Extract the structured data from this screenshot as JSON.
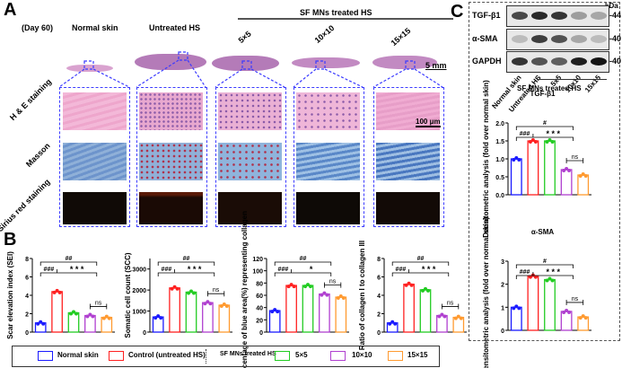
{
  "panels": {
    "a": "A",
    "b": "B",
    "c": "C"
  },
  "panelA": {
    "day": "(Day 60)",
    "groups": [
      "Normal skin",
      "Untreated HS"
    ],
    "treated_header": "SF MNs treated HS",
    "treated_groups": [
      "5×5",
      "10×10",
      "15×15"
    ],
    "scale_macro": "5 mm",
    "scale_micro": "100 μm",
    "row_labels": [
      "H & E staining",
      "Masson",
      "Sirius red staining"
    ]
  },
  "legend": {
    "normal": "Normal skin",
    "control": "Control (untreated HS)",
    "treated": "SF MNs treated HS",
    "g5": "5×5",
    "g10": "10×10",
    "g15": "15×15"
  },
  "colors": {
    "normal": "#1a1aff",
    "control": "#ff2020",
    "g5": "#22cc22",
    "g10": "#b040d0",
    "g15": "#ff9a30"
  },
  "panelC": {
    "kda": "kDa",
    "blots": [
      {
        "name": "TGF-β1",
        "kda": "44",
        "intensity": [
          0.75,
          0.9,
          0.85,
          0.35,
          0.3
        ]
      },
      {
        "name": "α-SMA",
        "kda": "40",
        "intensity": [
          0.2,
          0.8,
          0.7,
          0.3,
          0.2
        ]
      },
      {
        "name": "GAPDH",
        "kda": "40",
        "intensity": [
          0.85,
          0.7,
          0.65,
          0.95,
          1.0
        ]
      }
    ],
    "lanes": [
      "Normal skin",
      "Untreated HS",
      "5x5",
      "10x10",
      "15x15"
    ],
    "treated_label": "SF MNs treated HS"
  },
  "chart_data": [
    {
      "type": "bar",
      "title": "",
      "ylabel": "Scar elevation index (SEI)",
      "categories": [
        "Normal skin",
        "Control (untreated HS)",
        "5×5",
        "10×10",
        "15×15"
      ],
      "values": [
        1.0,
        4.4,
        2.1,
        1.8,
        1.6
      ],
      "ylim": [
        0,
        8
      ],
      "yticks": [
        0,
        2,
        4,
        6,
        8
      ],
      "annotations": [
        "###",
        "##",
        "***",
        "ns"
      ]
    },
    {
      "type": "bar",
      "title": "",
      "ylabel": "Somatic cell count (SCC)",
      "categories": [
        "Normal skin",
        "Control (untreated HS)",
        "5×5",
        "10×10",
        "15×15"
      ],
      "values": [
        720,
        2100,
        1900,
        1400,
        1280
      ],
      "ylim": [
        0,
        3500
      ],
      "yticks": [
        0,
        1000,
        2000,
        3000
      ],
      "annotations": [
        "###",
        "##",
        "***",
        "ns"
      ]
    },
    {
      "type": "bar",
      "title": "",
      "ylabel": "Percentage of blue area(%) representing collagen",
      "categories": [
        "Normal skin",
        "Control (untreated HS)",
        "5×5",
        "10×10",
        "15×15"
      ],
      "values": [
        35,
        76,
        76,
        62,
        57
      ],
      "ylim": [
        0,
        120
      ],
      "yticks": [
        0,
        20,
        40,
        60,
        80,
        100,
        120
      ],
      "annotations": [
        "###",
        "##",
        "*",
        "ns",
        "ns"
      ]
    },
    {
      "type": "bar",
      "title": "",
      "ylabel": "Ratio of collagen I to collagen III",
      "categories": [
        "Normal skin",
        "Control (untreated HS)",
        "5×5",
        "10×10",
        "15×15"
      ],
      "values": [
        1.0,
        5.2,
        4.6,
        1.8,
        1.6
      ],
      "ylim": [
        0,
        8
      ],
      "yticks": [
        0,
        2,
        4,
        6,
        8
      ],
      "annotations": [
        "###",
        "##",
        "***",
        "ns",
        "ns"
      ]
    },
    {
      "type": "bar",
      "title": "TGF-β1",
      "ylabel": "Densitometric analysis (fold over normal skin)",
      "categories": [
        "Normal skin",
        "Control (untreated HS)",
        "5×5",
        "10×10",
        "15×15"
      ],
      "values": [
        1.0,
        1.5,
        1.5,
        0.7,
        0.55
      ],
      "ylim": [
        0,
        2.0
      ],
      "yticks": [
        "0.0",
        "0.5",
        "1.0",
        "1.5",
        "2.0"
      ],
      "annotations": [
        "#",
        "###",
        "***",
        "ns",
        "ns"
      ]
    },
    {
      "type": "bar",
      "title": "α-SMA",
      "ylabel": "Densitometric analysis (fold over normal skin)",
      "categories": [
        "Normal skin",
        "Control (untreated HS)",
        "5×5",
        "10×10",
        "15×15"
      ],
      "values": [
        1.0,
        2.35,
        2.2,
        0.82,
        0.58
      ],
      "ylim": [
        0,
        3
      ],
      "yticks": [
        "0",
        "1",
        "2",
        "3"
      ],
      "annotations": [
        "#",
        "###",
        "***",
        "ns",
        "ns"
      ]
    }
  ]
}
